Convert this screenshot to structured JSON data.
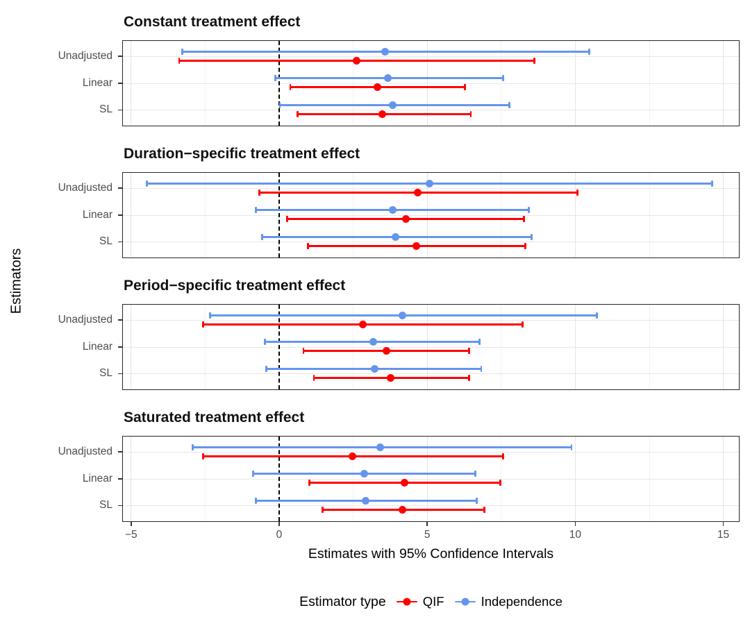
{
  "figure": {
    "y_axis_title": "Estimators",
    "x_axis_title": "Estimates with 95% Confidence Intervals",
    "legend_title": "Estimator type"
  },
  "chart_data": {
    "type": "scatter",
    "subtype": "forest-plot-points-with-95pct-CI-error-bars",
    "title": "",
    "xlabel": "Estimates with 95% Confidence Intervals",
    "ylabel": "Estimators",
    "x_ticks": [
      -5,
      0,
      5,
      10,
      15
    ],
    "x_tick_labels": [
      "−5",
      "0",
      "5",
      "10",
      "15"
    ],
    "x_minor_ticks": [
      -2.5,
      2.5,
      7.5,
      12.5
    ],
    "xlim": [
      -5.3,
      15.55
    ],
    "reference_line_x": 0,
    "grid": "on",
    "categories": [
      "Unadjusted",
      "Linear",
      "SL"
    ],
    "legend": {
      "title": "Estimator type",
      "position": "bottom",
      "entries": [
        {
          "label": "QIF",
          "color": "#ff0000"
        },
        {
          "label": "Independence",
          "color": "#6495ed"
        }
      ]
    },
    "panels": [
      {
        "title": "Constant treatment effect",
        "rows": [
          {
            "estimator": "Unadjusted",
            "Independence": {
              "estimate": 3.55,
              "lower": -3.3,
              "upper": 10.45
            },
            "QIF": {
              "estimate": 2.6,
              "lower": -3.4,
              "upper": 8.6
            }
          },
          {
            "estimator": "Linear",
            "Independence": {
              "estimate": 3.65,
              "lower": -0.15,
              "upper": 7.55
            },
            "QIF": {
              "estimate": 3.3,
              "lower": 0.35,
              "upper": 6.25
            }
          },
          {
            "estimator": "SL",
            "Independence": {
              "estimate": 3.8,
              "lower": 0.0,
              "upper": 7.75
            },
            "QIF": {
              "estimate": 3.45,
              "lower": 0.6,
              "upper": 6.45
            }
          }
        ]
      },
      {
        "title": "Duration−specific treatment effect",
        "rows": [
          {
            "estimator": "Unadjusted",
            "Independence": {
              "estimate": 5.05,
              "lower": -4.5,
              "upper": 14.6
            },
            "QIF": {
              "estimate": 4.65,
              "lower": -0.7,
              "upper": 10.05
            }
          },
          {
            "estimator": "Linear",
            "Independence": {
              "estimate": 3.8,
              "lower": -0.8,
              "upper": 8.4
            },
            "QIF": {
              "estimate": 4.25,
              "lower": 0.25,
              "upper": 8.25
            }
          },
          {
            "estimator": "SL",
            "Independence": {
              "estimate": 3.9,
              "lower": -0.6,
              "upper": 8.5
            },
            "QIF": {
              "estimate": 4.6,
              "lower": 0.95,
              "upper": 8.3
            }
          }
        ]
      },
      {
        "title": "Period−specific treatment effect",
        "rows": [
          {
            "estimator": "Unadjusted",
            "Independence": {
              "estimate": 4.15,
              "lower": -2.35,
              "upper": 10.7
            },
            "QIF": {
              "estimate": 2.8,
              "lower": -2.6,
              "upper": 8.2
            }
          },
          {
            "estimator": "Linear",
            "Independence": {
              "estimate": 3.15,
              "lower": -0.5,
              "upper": 6.75
            },
            "QIF": {
              "estimate": 3.6,
              "lower": 0.8,
              "upper": 6.4
            }
          },
          {
            "estimator": "SL",
            "Independence": {
              "estimate": 3.2,
              "lower": -0.45,
              "upper": 6.8
            },
            "QIF": {
              "estimate": 3.75,
              "lower": 1.15,
              "upper": 6.4
            }
          }
        ]
      },
      {
        "title": "Saturated treatment effect",
        "rows": [
          {
            "estimator": "Unadjusted",
            "Independence": {
              "estimate": 3.4,
              "lower": -2.95,
              "upper": 9.85
            },
            "QIF": {
              "estimate": 2.45,
              "lower": -2.6,
              "upper": 7.55
            }
          },
          {
            "estimator": "Linear",
            "Independence": {
              "estimate": 2.85,
              "lower": -0.9,
              "upper": 6.6
            },
            "QIF": {
              "estimate": 4.2,
              "lower": 1.0,
              "upper": 7.45
            }
          },
          {
            "estimator": "SL",
            "Independence": {
              "estimate": 2.9,
              "lower": -0.8,
              "upper": 6.65
            },
            "QIF": {
              "estimate": 4.15,
              "lower": 1.45,
              "upper": 6.9
            }
          }
        ]
      }
    ]
  }
}
